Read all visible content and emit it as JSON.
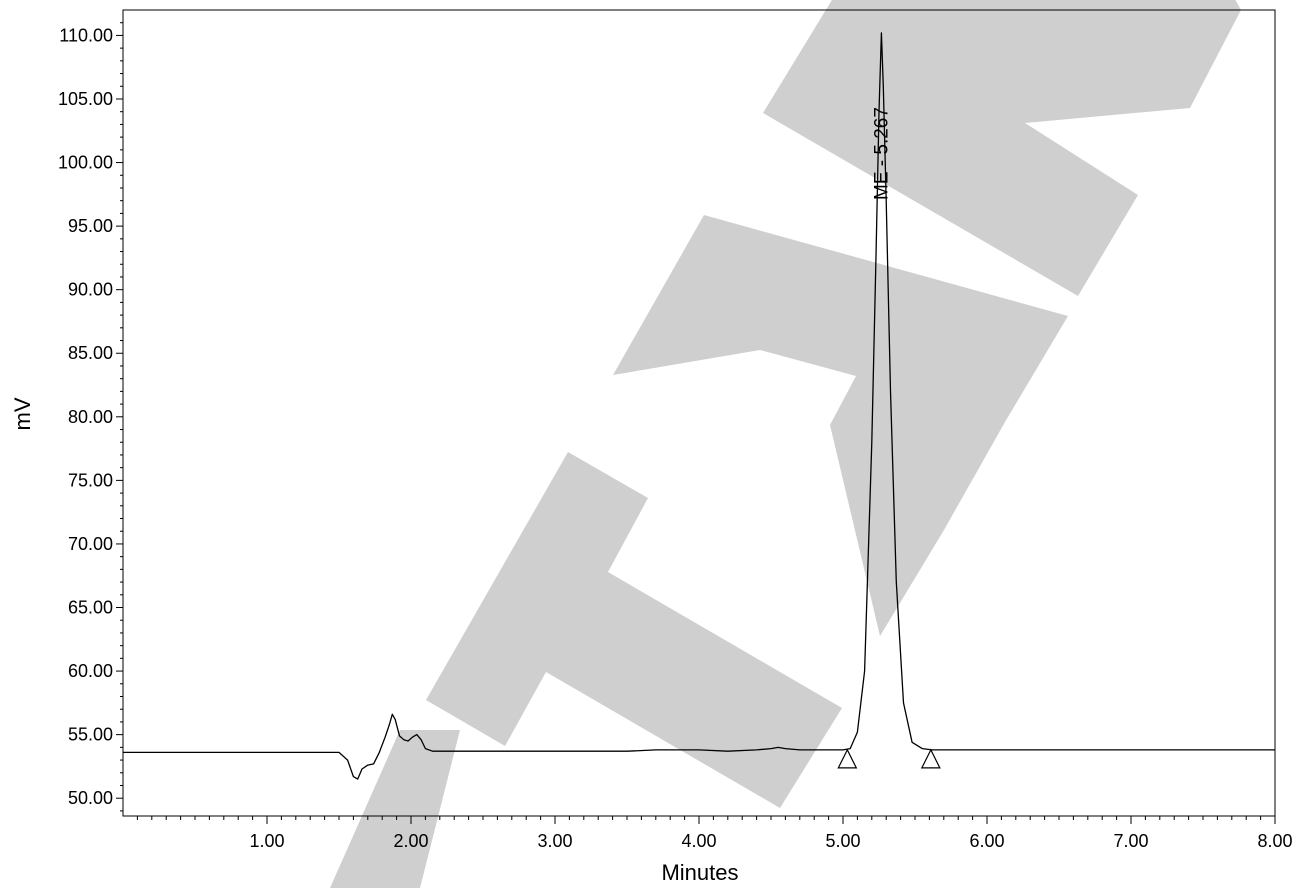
{
  "chart_data": {
    "type": "line",
    "title": "",
    "xlabel": "Minutes",
    "ylabel": "mV",
    "xlim": [
      0.0,
      8.0
    ],
    "ylim": [
      48.6,
      112.0
    ],
    "x_ticks": [
      "1.00",
      "2.00",
      "3.00",
      "4.00",
      "5.00",
      "6.00",
      "7.00",
      "8.00"
    ],
    "x_tick_values": [
      1,
      2,
      3,
      4,
      5,
      6,
      7,
      8
    ],
    "y_ticks": [
      "50.00",
      "55.00",
      "60.00",
      "65.00",
      "70.00",
      "75.00",
      "80.00",
      "85.00",
      "90.00",
      "95.00",
      "100.00",
      "105.00",
      "110.00"
    ],
    "y_tick_values": [
      50,
      55,
      60,
      65,
      70,
      75,
      80,
      85,
      90,
      95,
      100,
      105,
      110
    ],
    "grid": false,
    "legend": "none",
    "line_color": "#000000",
    "watermark_color": "#cfcfcf",
    "series": [
      {
        "x": [
          0.0,
          1.5,
          1.56,
          1.6,
          1.63,
          1.66,
          1.7,
          1.74,
          1.78,
          1.82,
          1.85,
          1.87,
          1.89,
          1.92,
          1.95,
          1.98,
          2.01,
          2.04,
          2.07,
          2.1,
          2.15,
          2.5,
          3.0,
          3.3,
          3.5,
          3.7,
          4.0,
          4.2,
          4.4,
          4.5,
          4.55,
          4.6,
          4.7,
          4.9,
          5.0,
          5.05,
          5.1,
          5.15,
          5.2,
          5.23,
          5.25,
          5.267,
          5.28,
          5.3,
          5.33,
          5.37,
          5.42,
          5.48,
          5.55,
          5.62,
          5.7,
          6.0,
          7.0,
          8.0
        ],
        "y": [
          53.6,
          53.6,
          53.0,
          51.7,
          51.5,
          52.3,
          52.6,
          52.7,
          53.6,
          54.8,
          55.8,
          56.6,
          56.2,
          54.9,
          54.6,
          54.5,
          54.8,
          55.0,
          54.6,
          53.9,
          53.7,
          53.7,
          53.7,
          53.7,
          53.7,
          53.8,
          53.8,
          53.7,
          53.8,
          53.9,
          54.0,
          53.9,
          53.8,
          53.8,
          53.8,
          53.9,
          55.2,
          60.0,
          78.0,
          93.0,
          104.0,
          110.2,
          106.0,
          97.0,
          82.0,
          67.0,
          57.5,
          54.4,
          53.9,
          53.8,
          53.8,
          53.8,
          53.8,
          53.8
        ]
      }
    ],
    "baseline_markers": [
      {
        "x": 5.03,
        "y": 53.8
      },
      {
        "x": 5.61,
        "y": 53.8
      }
    ],
    "peak_annotations": [
      {
        "label": "ME - 5.267",
        "x": 5.267,
        "y": 110.2
      }
    ]
  }
}
